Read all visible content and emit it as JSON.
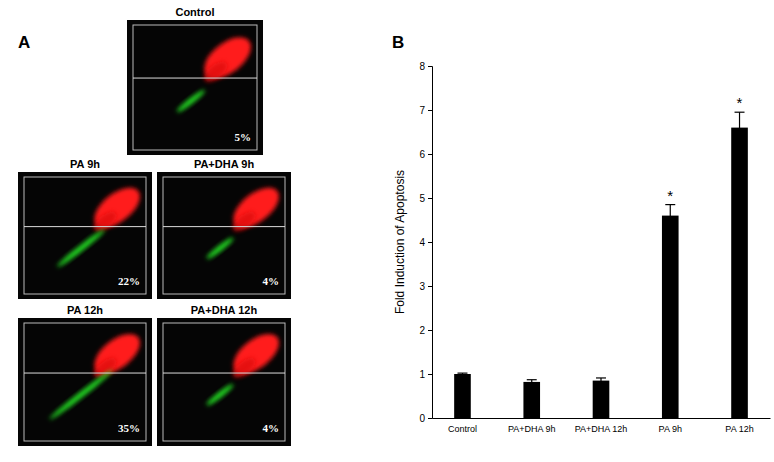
{
  "panel_labels": [
    "A",
    "B"
  ],
  "flow_panels": [
    {
      "title": "Control",
      "apoptosis": 5,
      "apoptosis_label": "5%"
    },
    {
      "title": "PA 9h",
      "apoptosis": 22,
      "apoptosis_label": "22%"
    },
    {
      "title": "PA+DHA 9h",
      "apoptosis": 4,
      "apoptosis_label": "4%"
    },
    {
      "title": "PA 12h",
      "apoptosis": 35,
      "apoptosis_label": "35%"
    },
    {
      "title": "PA+DHA 12h",
      "apoptosis": 4,
      "apoptosis_label": "4%"
    }
  ],
  "chart_data": {
    "type": "bar",
    "categories": [
      "Control",
      "PA+DHA 9h",
      "PA+DHA 12h",
      "PA 9h",
      "PA 12h"
    ],
    "values": [
      1.0,
      0.82,
      0.85,
      4.6,
      6.6
    ],
    "errors": [
      0.02,
      0.05,
      0.06,
      0.25,
      0.35
    ],
    "annotations": [
      null,
      null,
      null,
      "*",
      "*"
    ],
    "color": "#000000",
    "ylabel": "Fold Induction of Apoptosis",
    "ylim": [
      0,
      8
    ],
    "yticks": [
      0,
      1,
      2,
      3,
      4,
      5,
      6,
      7,
      8
    ],
    "grid": false
  }
}
